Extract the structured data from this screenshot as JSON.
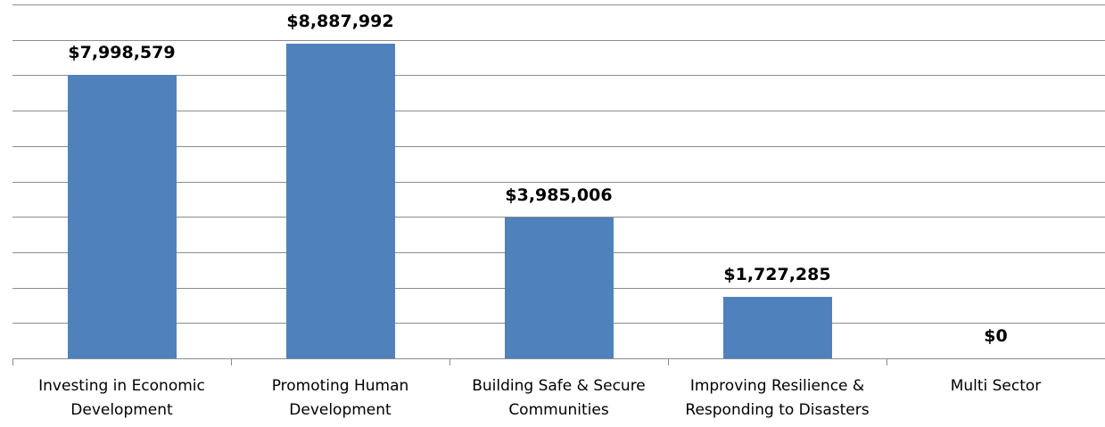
{
  "chart_data": {
    "type": "bar",
    "categories": [
      "Investing in Economic Development",
      "Promoting Human Development",
      "Building Safe & Secure Communities",
      "Improving Resilience & Responding to Disasters",
      "Multi Sector"
    ],
    "values": [
      7998579,
      8887992,
      3985006,
      1727285,
      0
    ],
    "value_labels": [
      "$7,998,579",
      "$8,887,992",
      "$3,985,006",
      "$1,727,285",
      "$0"
    ],
    "color": "#4f81bd",
    "ylim": [
      0,
      10000000
    ],
    "yticks": [
      0,
      1000000,
      2000000,
      3000000,
      4000000,
      5000000,
      6000000,
      7000000,
      8000000,
      9000000,
      10000000
    ],
    "grid": true
  }
}
